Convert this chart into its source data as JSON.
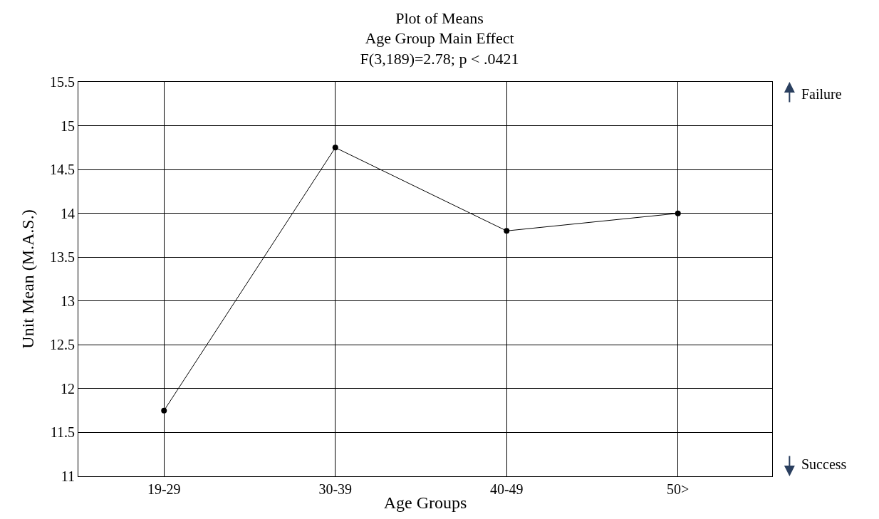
{
  "chart_data": {
    "type": "line",
    "title": "Plot of Means",
    "subtitle": "Age Group Main Effect\nF(3,189)=2.78; p < .0421",
    "xlabel": "Age Groups",
    "ylabel": "Unit Mean (M.A.S.)",
    "categories": [
      "19-29",
      "30-39",
      "40-49",
      "50>"
    ],
    "series": [
      {
        "color": "#000000",
        "values": [
          11.75,
          14.75,
          13.8,
          14.0
        ]
      }
    ],
    "ylim": [
      11,
      15.5
    ],
    "yticks": [
      11,
      11.5,
      12,
      12.5,
      13,
      13.5,
      14,
      14.5,
      15,
      15.5
    ],
    "grid": true,
    "marker": "circle",
    "line_style": "solid",
    "annotations": [
      "Failure",
      "Success"
    ]
  }
}
